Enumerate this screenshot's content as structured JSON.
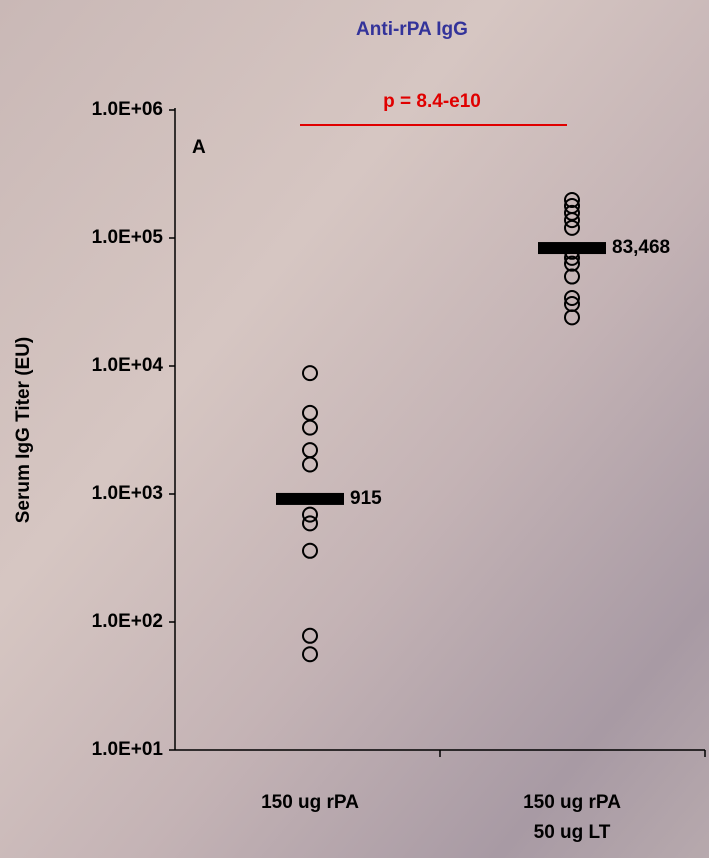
{
  "chart_data": {
    "type": "scatter",
    "log_scale": true,
    "title": "Anti-rPA IgG",
    "ylabel": "Serum IgG Titer (EU)",
    "annotations": {
      "panel": "A",
      "pvalue": "p = 8.4-e10"
    },
    "categories": [
      [
        "150 ug rPA"
      ],
      [
        "150 ug rPA",
        "50 ug LT"
      ]
    ],
    "groups": [
      {
        "values": [
          8800,
          4300,
          3300,
          2200,
          1700,
          690,
          590,
          360,
          78,
          56
        ]
      },
      {
        "values": [
          198000,
          178000,
          157000,
          138000,
          120000,
          78000,
          70000,
          63000,
          50000,
          34000,
          30500,
          24000
        ]
      }
    ],
    "means": [
      915,
      83468
    ],
    "mean_labels": [
      "915",
      "83,468"
    ],
    "marker_color": "#000000",
    "title_color": "#33339a",
    "pvalue_color": "#e00000",
    "ylim": [
      10,
      1000000
    ],
    "yticks": [
      {
        "value": 10,
        "label": "1.0E+01"
      },
      {
        "value": 100,
        "label": "1.0E+02"
      },
      {
        "value": 1000,
        "label": "1.0E+03"
      },
      {
        "value": 10000,
        "label": "1.0E+04"
      },
      {
        "value": 100000,
        "label": "1.0E+05"
      },
      {
        "value": 1000000,
        "label": "1.0E+06"
      }
    ]
  }
}
